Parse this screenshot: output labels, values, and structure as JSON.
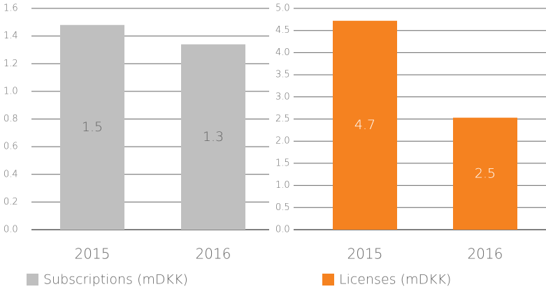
{
  "chart_data": [
    {
      "type": "bar",
      "categories": [
        "2015",
        "2016"
      ],
      "series": [
        {
          "name": "Subscriptions (mDKK)",
          "color": "#bfbfbf",
          "values": [
            1.48,
            1.34
          ],
          "value_labels": [
            "1.5",
            "1.3"
          ]
        }
      ],
      "ylim": [
        0,
        1.6
      ],
      "yticks": [
        {
          "value": 0,
          "label": "0.0"
        },
        0.2,
        0.4,
        0.6,
        0.8,
        {
          "value": 1,
          "label": "1.0"
        },
        1.2,
        1.4,
        1.6
      ],
      "grid": true
    },
    {
      "type": "bar",
      "categories": [
        "2015",
        "2016"
      ],
      "series": [
        {
          "name": "Licenses (mDKK)",
          "color": "#f58220",
          "values": [
            4.72,
            2.53
          ],
          "value_labels": [
            "4.7",
            "2.5"
          ]
        }
      ],
      "ylim": [
        0,
        5
      ],
      "yticks": [
        {
          "value": 0,
          "label": "0.0"
        },
        0.5,
        {
          "value": 1,
          "label": "1.0"
        },
        1.5,
        {
          "value": 2,
          "label": "2.0"
        },
        2.5,
        {
          "value": 3,
          "label": "3.0"
        },
        3.5,
        {
          "value": 4,
          "label": "4.0"
        },
        4.5,
        {
          "value": 5,
          "label": "5.0"
        }
      ],
      "grid": true
    }
  ]
}
